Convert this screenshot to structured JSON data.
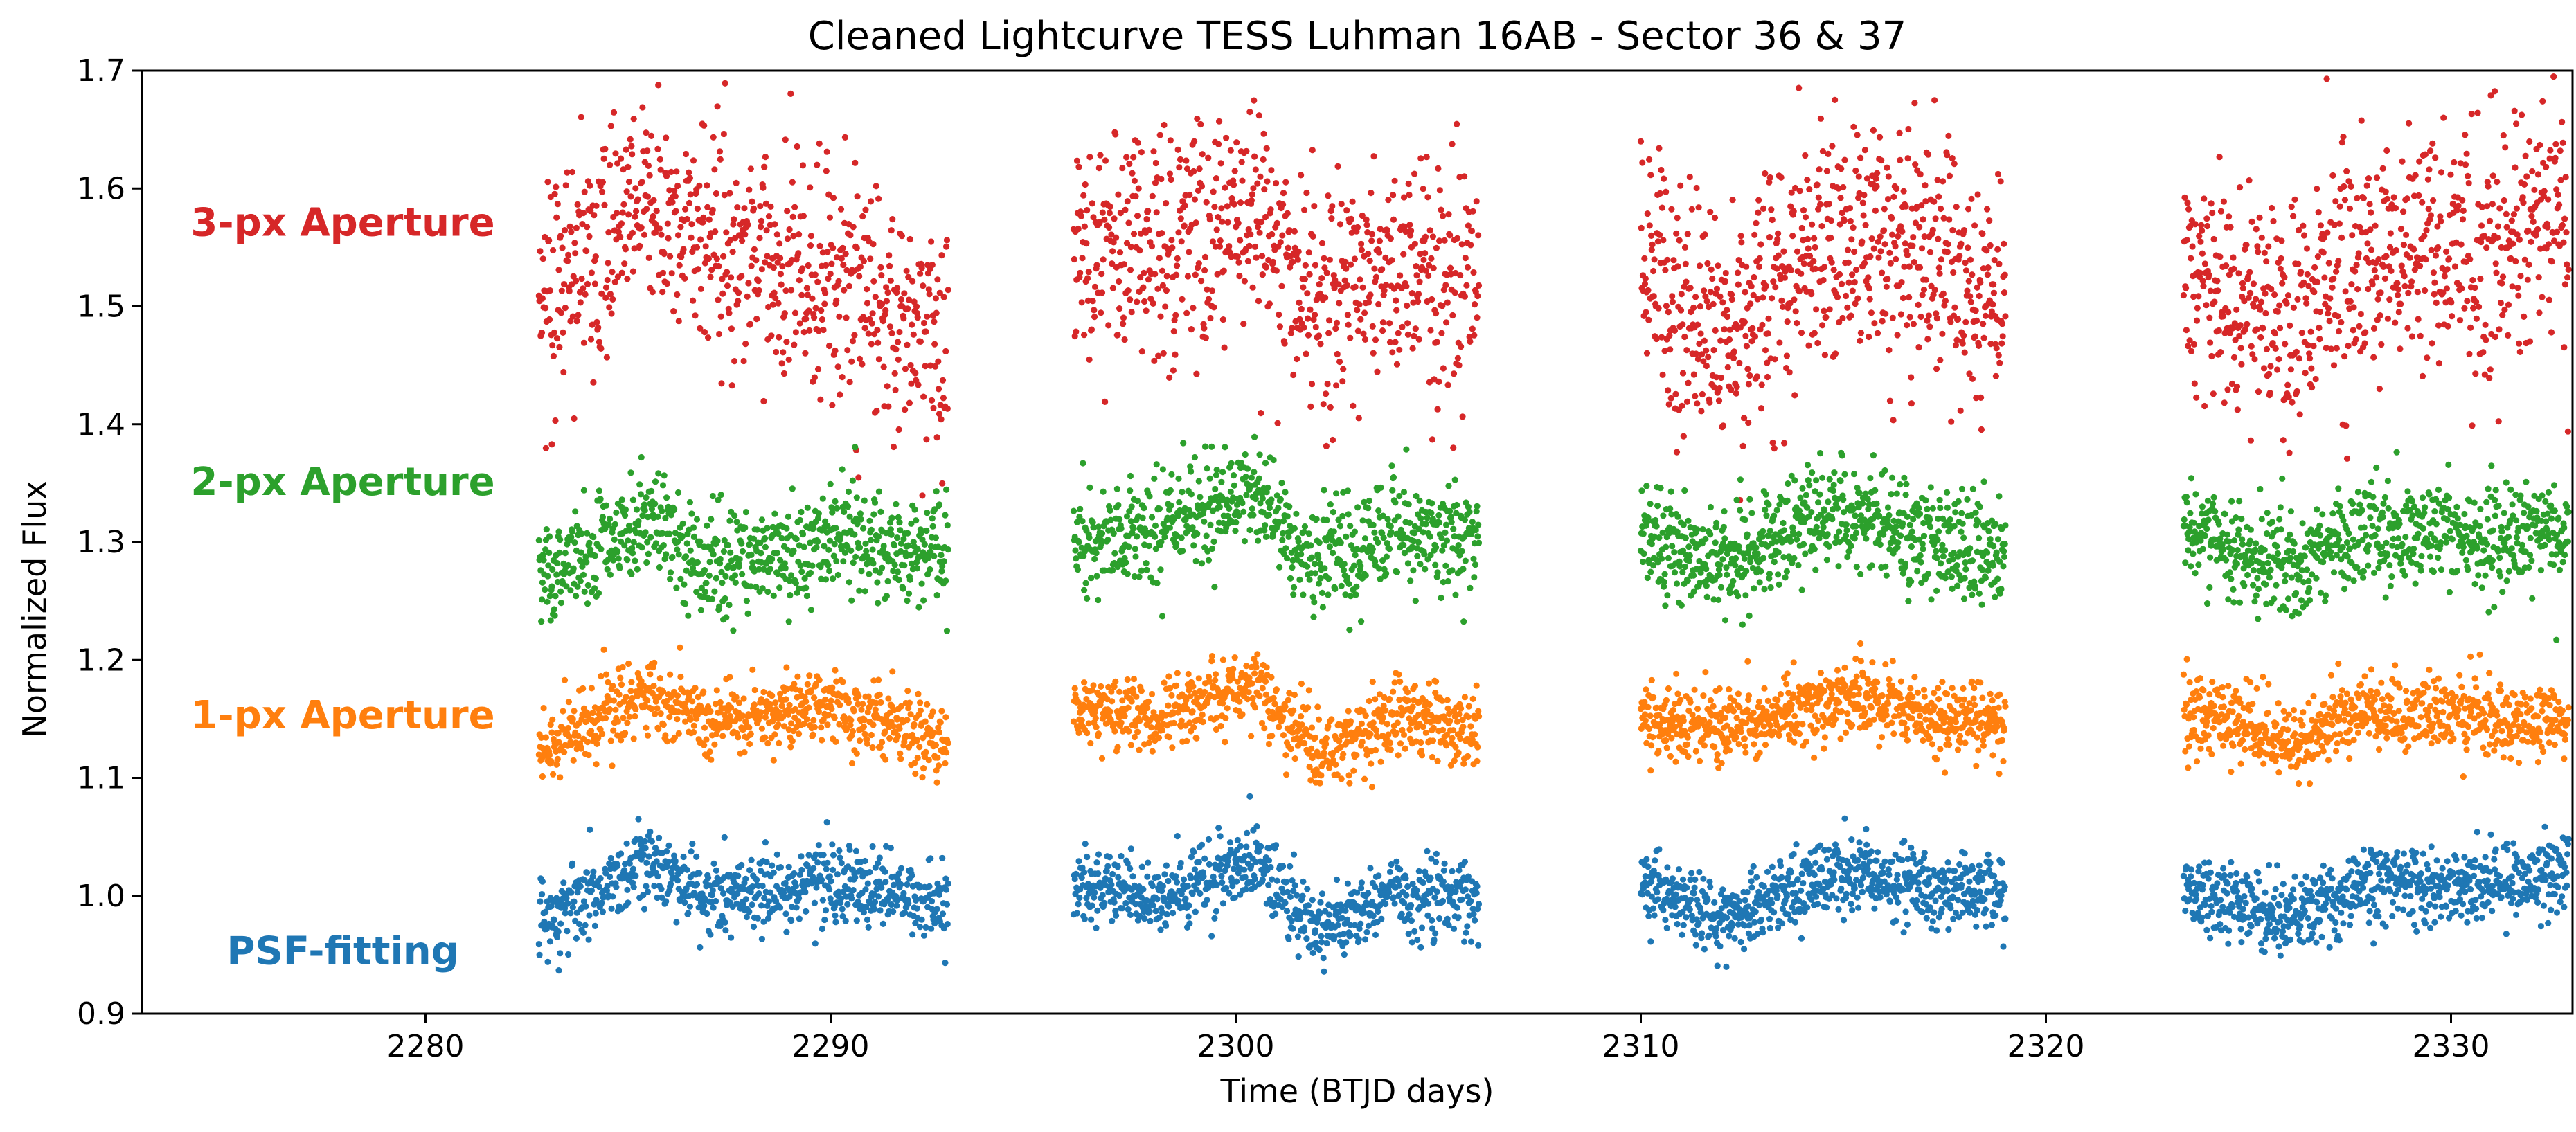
{
  "chart_data": {
    "type": "scatter",
    "title": "Cleaned Lightcurve TESS Luhman 16AB - Sector 36 & 37",
    "xlabel": "Time (BTJD days)",
    "ylabel": "Normalized Flux",
    "xlim": [
      2273.0,
      2333.0
    ],
    "ylim": [
      0.9,
      1.7
    ],
    "xticks": [
      2280,
      2290,
      2300,
      2310,
      2320,
      2330
    ],
    "yticks": [
      0.9,
      1.0,
      1.1,
      1.2,
      1.3,
      1.4,
      1.5,
      1.6,
      1.7
    ],
    "ytick_labels": [
      "0.9",
      "1.0",
      "1.1",
      "1.2",
      "1.3",
      "1.4",
      "1.5",
      "1.6",
      "1.7"
    ],
    "grid": false,
    "legend": "none; series labels drawn as colored text on the left",
    "data_segments": [
      [
        2282.8,
        2292.9
      ],
      [
        2296.0,
        2306.0
      ],
      [
        2310.0,
        2319.0
      ],
      [
        2323.4,
        2332.9
      ]
    ],
    "series": [
      {
        "name": "3-px Aperture",
        "color": "#d62728",
        "baseline": 1.53,
        "scatter": 0.05,
        "points_per_segment": 700,
        "trend": [
          {
            "x": 2283,
            "y": 1.51
          },
          {
            "x": 2285.5,
            "y": 1.58
          },
          {
            "x": 2288,
            "y": 1.55
          },
          {
            "x": 2291,
            "y": 1.5
          },
          {
            "x": 2292.9,
            "y": 1.47
          },
          {
            "x": 2296,
            "y": 1.55
          },
          {
            "x": 2298,
            "y": 1.56
          },
          {
            "x": 2300.5,
            "y": 1.58
          },
          {
            "x": 2302,
            "y": 1.5
          },
          {
            "x": 2304,
            "y": 1.53
          },
          {
            "x": 2306,
            "y": 1.52
          },
          {
            "x": 2310,
            "y": 1.55
          },
          {
            "x": 2312,
            "y": 1.47
          },
          {
            "x": 2315,
            "y": 1.56
          },
          {
            "x": 2317,
            "y": 1.54
          },
          {
            "x": 2319,
            "y": 1.5
          },
          {
            "x": 2323.4,
            "y": 1.53
          },
          {
            "x": 2326,
            "y": 1.48
          },
          {
            "x": 2328,
            "y": 1.55
          },
          {
            "x": 2331,
            "y": 1.55
          },
          {
            "x": 2332.9,
            "y": 1.58
          }
        ]
      },
      {
        "name": "2-px Aperture",
        "color": "#2ca02c",
        "baseline": 1.3,
        "scatter": 0.022,
        "points_per_segment": 700,
        "trend": [
          {
            "x": 2283,
            "y": 1.27
          },
          {
            "x": 2285.5,
            "y": 1.32
          },
          {
            "x": 2287,
            "y": 1.28
          },
          {
            "x": 2290,
            "y": 1.3
          },
          {
            "x": 2292.9,
            "y": 1.29
          },
          {
            "x": 2296,
            "y": 1.3
          },
          {
            "x": 2298,
            "y": 1.31
          },
          {
            "x": 2300.5,
            "y": 1.34
          },
          {
            "x": 2302,
            "y": 1.28
          },
          {
            "x": 2304,
            "y": 1.31
          },
          {
            "x": 2306,
            "y": 1.3
          },
          {
            "x": 2310,
            "y": 1.31
          },
          {
            "x": 2312,
            "y": 1.28
          },
          {
            "x": 2315,
            "y": 1.33
          },
          {
            "x": 2317,
            "y": 1.3
          },
          {
            "x": 2319,
            "y": 1.29
          },
          {
            "x": 2323.4,
            "y": 1.31
          },
          {
            "x": 2326,
            "y": 1.28
          },
          {
            "x": 2328,
            "y": 1.31
          },
          {
            "x": 2331,
            "y": 1.3
          },
          {
            "x": 2332.9,
            "y": 1.31
          }
        ]
      },
      {
        "name": "1-px Aperture",
        "color": "#ff7f0e",
        "baseline": 1.15,
        "scatter": 0.016,
        "points_per_segment": 700,
        "trend": [
          {
            "x": 2283,
            "y": 1.13
          },
          {
            "x": 2285.5,
            "y": 1.17
          },
          {
            "x": 2287,
            "y": 1.15
          },
          {
            "x": 2290,
            "y": 1.16
          },
          {
            "x": 2292.9,
            "y": 1.13
          },
          {
            "x": 2296,
            "y": 1.16
          },
          {
            "x": 2298,
            "y": 1.15
          },
          {
            "x": 2300.5,
            "y": 1.18
          },
          {
            "x": 2302,
            "y": 1.12
          },
          {
            "x": 2304,
            "y": 1.15
          },
          {
            "x": 2306,
            "y": 1.14
          },
          {
            "x": 2310,
            "y": 1.15
          },
          {
            "x": 2312,
            "y": 1.14
          },
          {
            "x": 2315,
            "y": 1.17
          },
          {
            "x": 2317,
            "y": 1.15
          },
          {
            "x": 2319,
            "y": 1.15
          },
          {
            "x": 2323.4,
            "y": 1.16
          },
          {
            "x": 2326,
            "y": 1.13
          },
          {
            "x": 2328,
            "y": 1.16
          },
          {
            "x": 2331,
            "y": 1.15
          },
          {
            "x": 2332.9,
            "y": 1.15
          }
        ]
      },
      {
        "name": "PSF-fitting",
        "color": "#1f77b4",
        "baseline": 1.0,
        "scatter": 0.016,
        "points_per_segment": 700,
        "trend": [
          {
            "x": 2283,
            "y": 0.98
          },
          {
            "x": 2285.5,
            "y": 1.03
          },
          {
            "x": 2287,
            "y": 1.0
          },
          {
            "x": 2290,
            "y": 1.01
          },
          {
            "x": 2292.9,
            "y": 0.99
          },
          {
            "x": 2296,
            "y": 1.01
          },
          {
            "x": 2298,
            "y": 1.0
          },
          {
            "x": 2300.5,
            "y": 1.03
          },
          {
            "x": 2302,
            "y": 0.97
          },
          {
            "x": 2304,
            "y": 1.0
          },
          {
            "x": 2306,
            "y": 1.0
          },
          {
            "x": 2310,
            "y": 1.01
          },
          {
            "x": 2312,
            "y": 0.98
          },
          {
            "x": 2315,
            "y": 1.02
          },
          {
            "x": 2317,
            "y": 1.01
          },
          {
            "x": 2319,
            "y": 1.0
          },
          {
            "x": 2323.4,
            "y": 1.01
          },
          {
            "x": 2326,
            "y": 0.98
          },
          {
            "x": 2328,
            "y": 1.01
          },
          {
            "x": 2331,
            "y": 1.01
          },
          {
            "x": 2332.9,
            "y": 1.02
          }
        ]
      }
    ]
  }
}
